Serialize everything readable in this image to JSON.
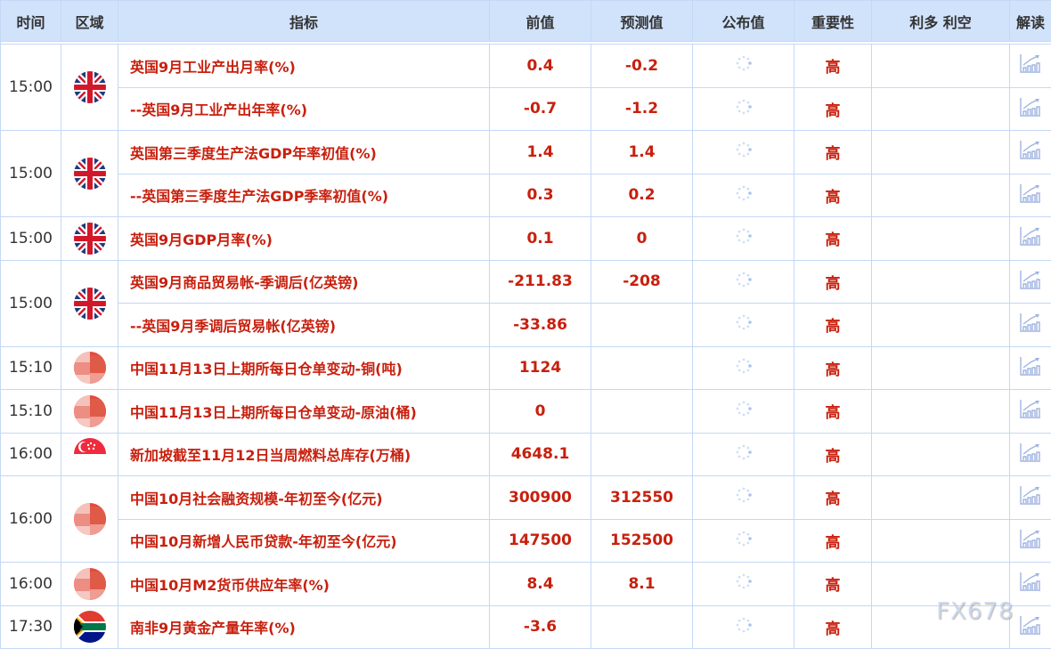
{
  "header": {
    "time": "时间",
    "region": "区域",
    "indicator": "指标",
    "previous": "前值",
    "forecast": "预测值",
    "actual": "公布值",
    "importance": "重要性",
    "impact": "利多 利空",
    "analysis": "解读"
  },
  "groups": [
    {
      "time": "15:00",
      "flag": "uk",
      "items": [
        {
          "name": "英国9月工业产出月率(%)",
          "previous": "0.4",
          "forecast": "-0.2",
          "actual": "",
          "importance": "高"
        },
        {
          "name": "--英国9月工业产出年率(%)",
          "previous": "-0.7",
          "forecast": "-1.2",
          "actual": "",
          "importance": "高"
        }
      ]
    },
    {
      "time": "15:00",
      "flag": "uk",
      "items": [
        {
          "name": "英国第三季度生产法GDP年率初值(%)",
          "previous": "1.4",
          "forecast": "1.4",
          "actual": "",
          "importance": "高"
        },
        {
          "name": "--英国第三季度生产法GDP季率初值(%)",
          "previous": "0.3",
          "forecast": "0.2",
          "actual": "",
          "importance": "高"
        }
      ]
    },
    {
      "time": "15:00",
      "flag": "uk",
      "items": [
        {
          "name": "英国9月GDP月率(%)",
          "previous": "0.1",
          "forecast": "0",
          "actual": "",
          "importance": "高"
        }
      ]
    },
    {
      "time": "15:00",
      "flag": "uk",
      "items": [
        {
          "name": "英国9月商品贸易帐-季调后(亿英镑)",
          "previous": "-211.83",
          "forecast": "-208",
          "actual": "",
          "importance": "高"
        },
        {
          "name": "--英国9月季调后贸易帐(亿英镑)",
          "previous": "-33.86",
          "forecast": "",
          "actual": "",
          "importance": "高"
        }
      ]
    },
    {
      "time": "15:10",
      "flag": "cn",
      "items": [
        {
          "name": "中国11月13日上期所每日仓单变动-铜(吨)",
          "previous": "1124",
          "forecast": "",
          "actual": "",
          "importance": "高"
        }
      ]
    },
    {
      "time": "15:10",
      "flag": "cn",
      "items": [
        {
          "name": "中国11月13日上期所每日仓单变动-原油(桶)",
          "previous": "0",
          "forecast": "",
          "actual": "",
          "importance": "高"
        }
      ]
    },
    {
      "time": "16:00",
      "flag": "sg",
      "items": [
        {
          "name": "新加坡截至11月12日当周燃料总库存(万桶)",
          "previous": "4648.1",
          "forecast": "",
          "actual": "",
          "importance": "高"
        }
      ]
    },
    {
      "time": "16:00",
      "flag": "cn",
      "items": [
        {
          "name": "中国10月社会融资规模-年初至今(亿元)",
          "previous": "300900",
          "forecast": "312550",
          "actual": "",
          "importance": "高"
        },
        {
          "name": "中国10月新增人民币贷款-年初至今(亿元)",
          "previous": "147500",
          "forecast": "152500",
          "actual": "",
          "importance": "高"
        }
      ]
    },
    {
      "time": "16:00",
      "flag": "cn",
      "items": [
        {
          "name": "中国10月M2货币供应年率(%)",
          "previous": "8.4",
          "forecast": "8.1",
          "actual": "",
          "importance": "高"
        }
      ]
    },
    {
      "time": "17:30",
      "flag": "za",
      "items": [
        {
          "name": "南非9月黄金产量年率(%)",
          "previous": "-3.6",
          "forecast": "",
          "actual": "",
          "importance": "高"
        }
      ]
    }
  ],
  "watermark": "FX678",
  "colors": {
    "header_bg": "#d1e2fb",
    "text_red": "#c8200e",
    "border": "#c4d8f5"
  }
}
